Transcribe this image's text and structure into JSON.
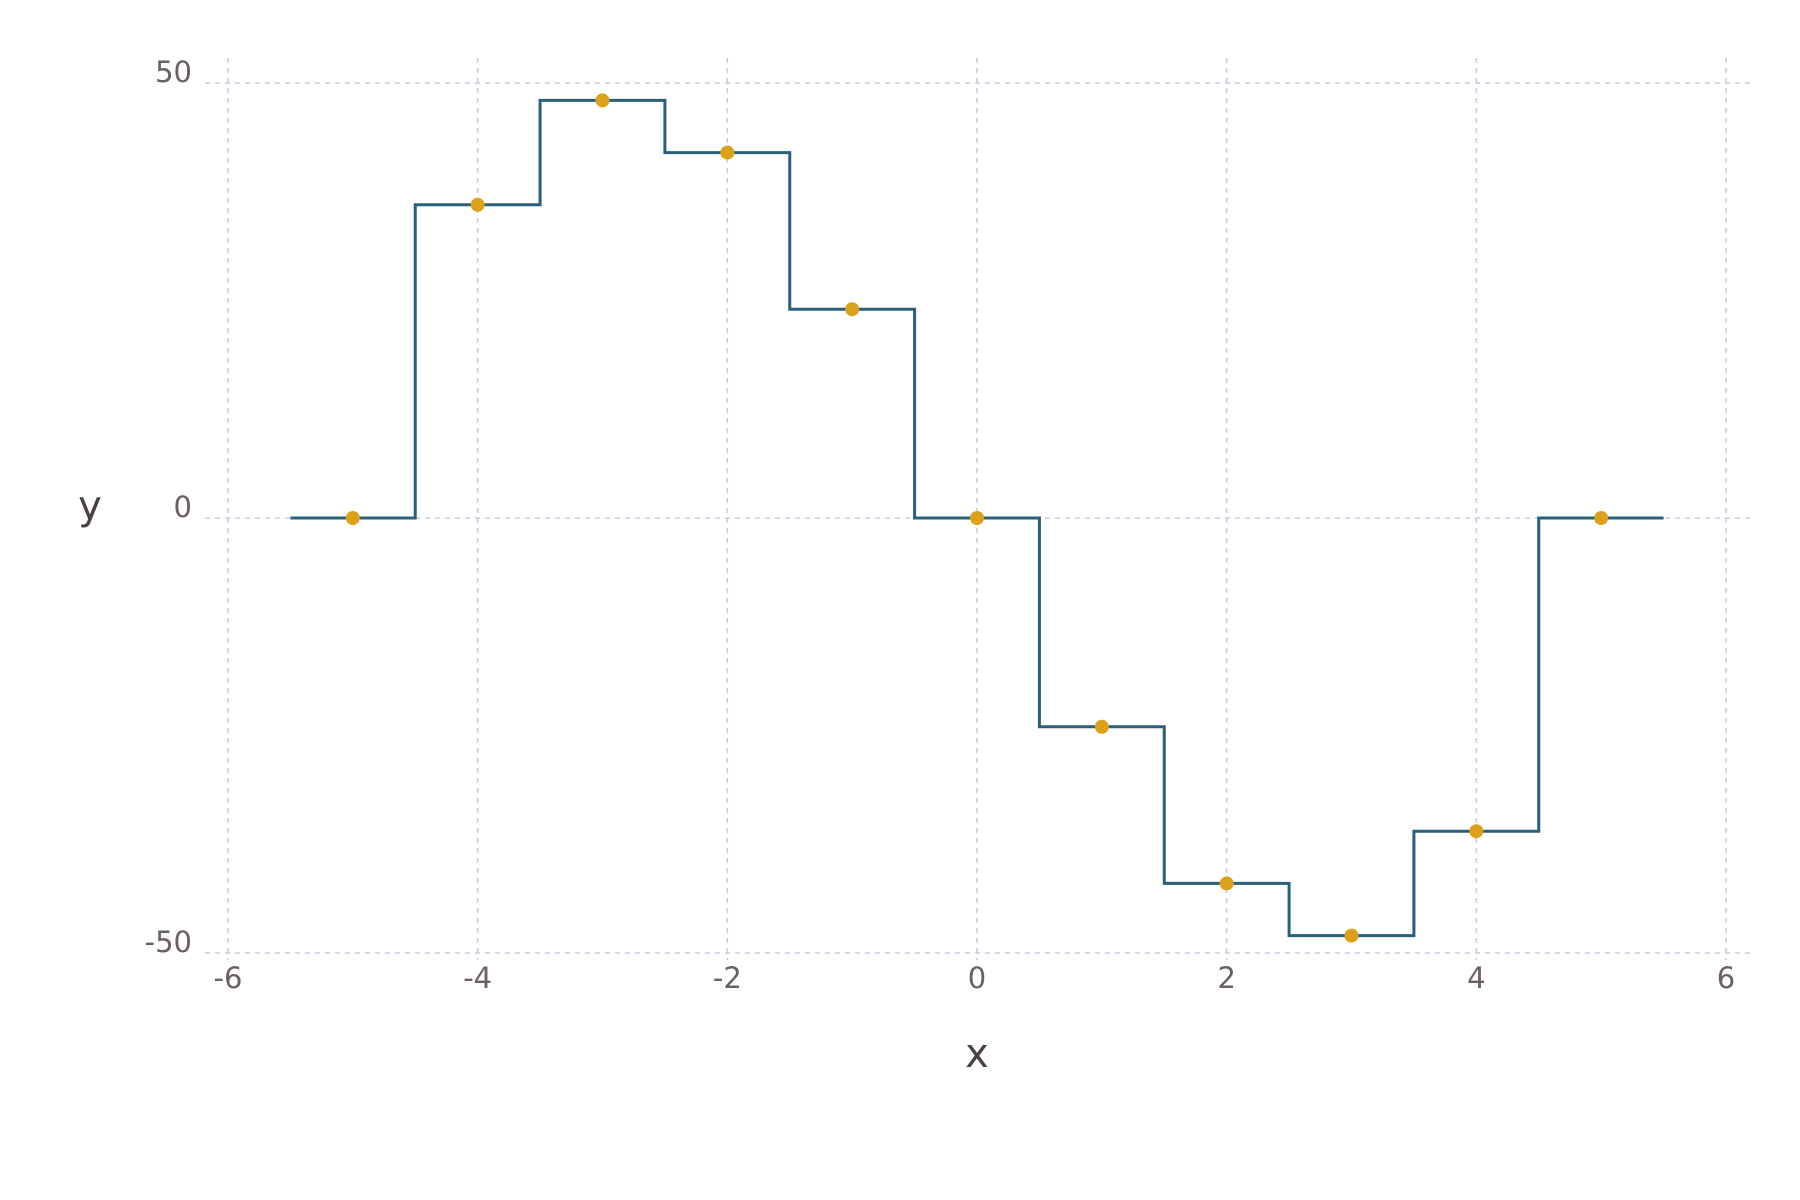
{
  "chart_data": {
    "type": "line",
    "title": "",
    "xlabel": "x",
    "ylabel": "y",
    "xlim": [
      -6,
      6
    ],
    "ylim": [
      -50,
      50
    ],
    "xticks": [
      -6,
      -4,
      -2,
      0,
      2,
      4,
      6
    ],
    "xtick_labels": [
      "-6",
      "-4",
      "-2",
      "0",
      "2",
      "4",
      "6"
    ],
    "yticks": [
      -50,
      0,
      50
    ],
    "ytick_labels": [
      "-50",
      "0",
      "50"
    ],
    "grid": true,
    "legend": "none",
    "series": [
      {
        "kind": "step",
        "color": "#2b5f7a",
        "x": [
          -5,
          -4,
          -3,
          -2,
          -1,
          0,
          1,
          2,
          3,
          4,
          5
        ],
        "y": [
          0,
          36,
          48,
          42,
          24,
          0,
          -24,
          -42,
          -48,
          -36,
          0
        ]
      },
      {
        "kind": "scatter",
        "color": "#dba11c",
        "x": [
          -5,
          -4,
          -3,
          -2,
          -1,
          0,
          1,
          2,
          3,
          4,
          5
        ],
        "y": [
          0,
          36,
          48,
          42,
          24,
          0,
          -24,
          -42,
          -48,
          -36,
          0
        ]
      }
    ]
  }
}
